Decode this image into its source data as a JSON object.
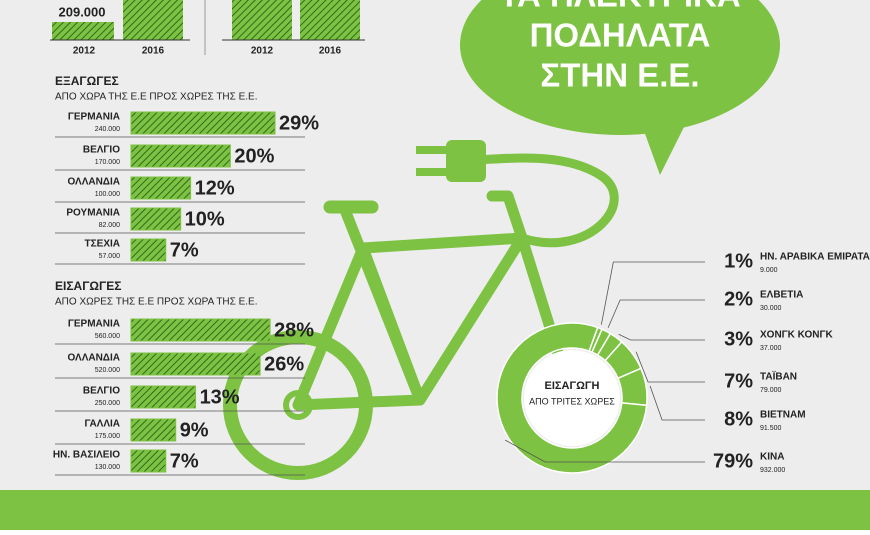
{
  "header": {
    "title_lines": [
      "ΤΑ ΗΛΕΚΤΡΙΚΑ",
      "ΠΟΔΗΛΑΤΑ",
      "ΣΤΗΝ Ε.Ε."
    ]
  },
  "top_chart": {
    "value_label": "209.000",
    "categories": [
      "2012",
      "2016",
      "2012",
      "2016"
    ]
  },
  "chart_data": [
    {
      "type": "hbar",
      "title": "ΕΞΑΓΩΓΕΣ",
      "subtitle": "ΑΠΟ ΧΩΡΑ ΤΗΣ Ε.Ε ΠΡΟΣ ΧΩΡΕΣ ΤΗΣ Ε.Ε.",
      "categories": [
        "ΓΕΡΜΑΝΙΑ",
        "ΒΕΛΓΙΟ",
        "ΟΛΛΑΝΔΙΑ",
        "ΡΟΥΜΑΝΙΑ",
        "ΤΣΕΧΙΑ"
      ],
      "sublabels": [
        "240.000",
        "170.000",
        "100.000",
        "82.000",
        "57.000"
      ],
      "values": [
        29,
        20,
        12,
        10,
        7
      ],
      "value_labels": [
        "29%",
        "20%",
        "12%",
        "10%",
        "7%"
      ],
      "xlim": [
        0,
        30
      ],
      "color": "#7dc242"
    },
    {
      "type": "hbar",
      "title": "ΕΙΣΑΓΩΓΕΣ",
      "subtitle": "ΑΠΟ ΧΩΡΕΣ ΤΗΣ Ε.Ε ΠΡΟΣ ΧΩΡΑ ΤΗΣ Ε.Ε.",
      "categories": [
        "ΓΕΡΜΑΝΙΑ",
        "ΟΛΛΑΝΔΙΑ",
        "ΒΕΛΓΙΟ",
        "ΓΑΛΛΙΑ",
        "ΗΝ. ΒΑΣΙΛΕΙΟ"
      ],
      "sublabels": [
        "560.000",
        "520.000",
        "250.000",
        "175.000",
        "130.000"
      ],
      "values": [
        28,
        26,
        13,
        9,
        7
      ],
      "value_labels": [
        "28%",
        "26%",
        "13%",
        "9%",
        "7%"
      ],
      "xlim": [
        0,
        30
      ],
      "color": "#7dc242"
    },
    {
      "type": "donut",
      "title": "ΕΙΣΑΓΩΓΗ",
      "subtitle": "ΑΠΟ ΤΡΙΤΕΣ ΧΩΡΕΣ",
      "categories": [
        "ΗΝ. ΑΡΑΒΙΚΑ ΕΜΙΡΑΤΑ",
        "ΕΛΒΕΤΙΑ",
        "ΧΟΝΓΚ ΚΟΝΓΚ",
        "ΤΑΪΒΑΝ",
        "ΒΙΕΤΝΑΜ",
        "ΚΙΝΑ"
      ],
      "sublabels": [
        "9.000",
        "30.000",
        "37.000",
        "79.000",
        "91.500",
        "932.000"
      ],
      "values": [
        1,
        2,
        3,
        7,
        8,
        79
      ],
      "value_labels": [
        "1%",
        "2%",
        "3%",
        "7%",
        "8%",
        "79%"
      ],
      "color": "#7dc242"
    }
  ]
}
